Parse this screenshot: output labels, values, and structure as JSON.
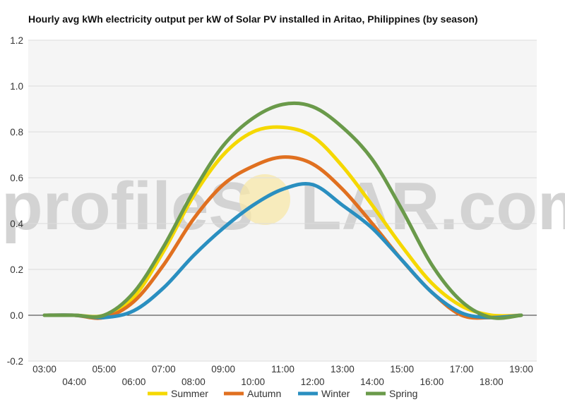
{
  "watermark": {
    "left": "profileS",
    "right": "LAR.com"
  },
  "chart_data": {
    "type": "line",
    "title": "Hourly avg kWh electricity output per kW of Solar PV installed in Aritao, Philippines (by season)",
    "xlabel": "",
    "ylabel": "",
    "ylim": [
      -0.2,
      1.2
    ],
    "yticks": [
      -0.2,
      0.0,
      0.2,
      0.4,
      0.6,
      0.8,
      1.0,
      1.2
    ],
    "ytick_labels": [
      "-0.2",
      "0.0",
      "0.2",
      "0.4",
      "0.6",
      "0.8",
      "1.0",
      "1.2"
    ],
    "x": [
      "03:00",
      "04:00",
      "05:00",
      "06:00",
      "07:00",
      "08:00",
      "09:00",
      "10:00",
      "11:00",
      "12:00",
      "13:00",
      "14:00",
      "15:00",
      "16:00",
      "17:00",
      "18:00",
      "19:00"
    ],
    "grid": true,
    "legend_position": "bottom",
    "series": [
      {
        "name": "Summer",
        "color": "#f5d800",
        "values": [
          0.0,
          0.0,
          0.0,
          0.08,
          0.28,
          0.52,
          0.7,
          0.8,
          0.82,
          0.78,
          0.65,
          0.48,
          0.3,
          0.14,
          0.04,
          0.0,
          0.0
        ]
      },
      {
        "name": "Autumn",
        "color": "#e07020",
        "values": [
          0.0,
          0.0,
          -0.01,
          0.06,
          0.22,
          0.42,
          0.57,
          0.65,
          0.69,
          0.66,
          0.55,
          0.4,
          0.24,
          0.1,
          0.0,
          -0.01,
          0.0
        ]
      },
      {
        "name": "Winter",
        "color": "#2a8fc0",
        "values": [
          0.0,
          0.0,
          -0.01,
          0.02,
          0.12,
          0.26,
          0.38,
          0.48,
          0.55,
          0.57,
          0.48,
          0.38,
          0.24,
          0.1,
          0.01,
          -0.01,
          0.0
        ]
      },
      {
        "name": "Spring",
        "color": "#6a9a4a",
        "values": [
          0.0,
          0.0,
          0.0,
          0.1,
          0.3,
          0.54,
          0.74,
          0.86,
          0.92,
          0.91,
          0.82,
          0.68,
          0.46,
          0.22,
          0.06,
          -0.01,
          0.0
        ]
      }
    ]
  }
}
